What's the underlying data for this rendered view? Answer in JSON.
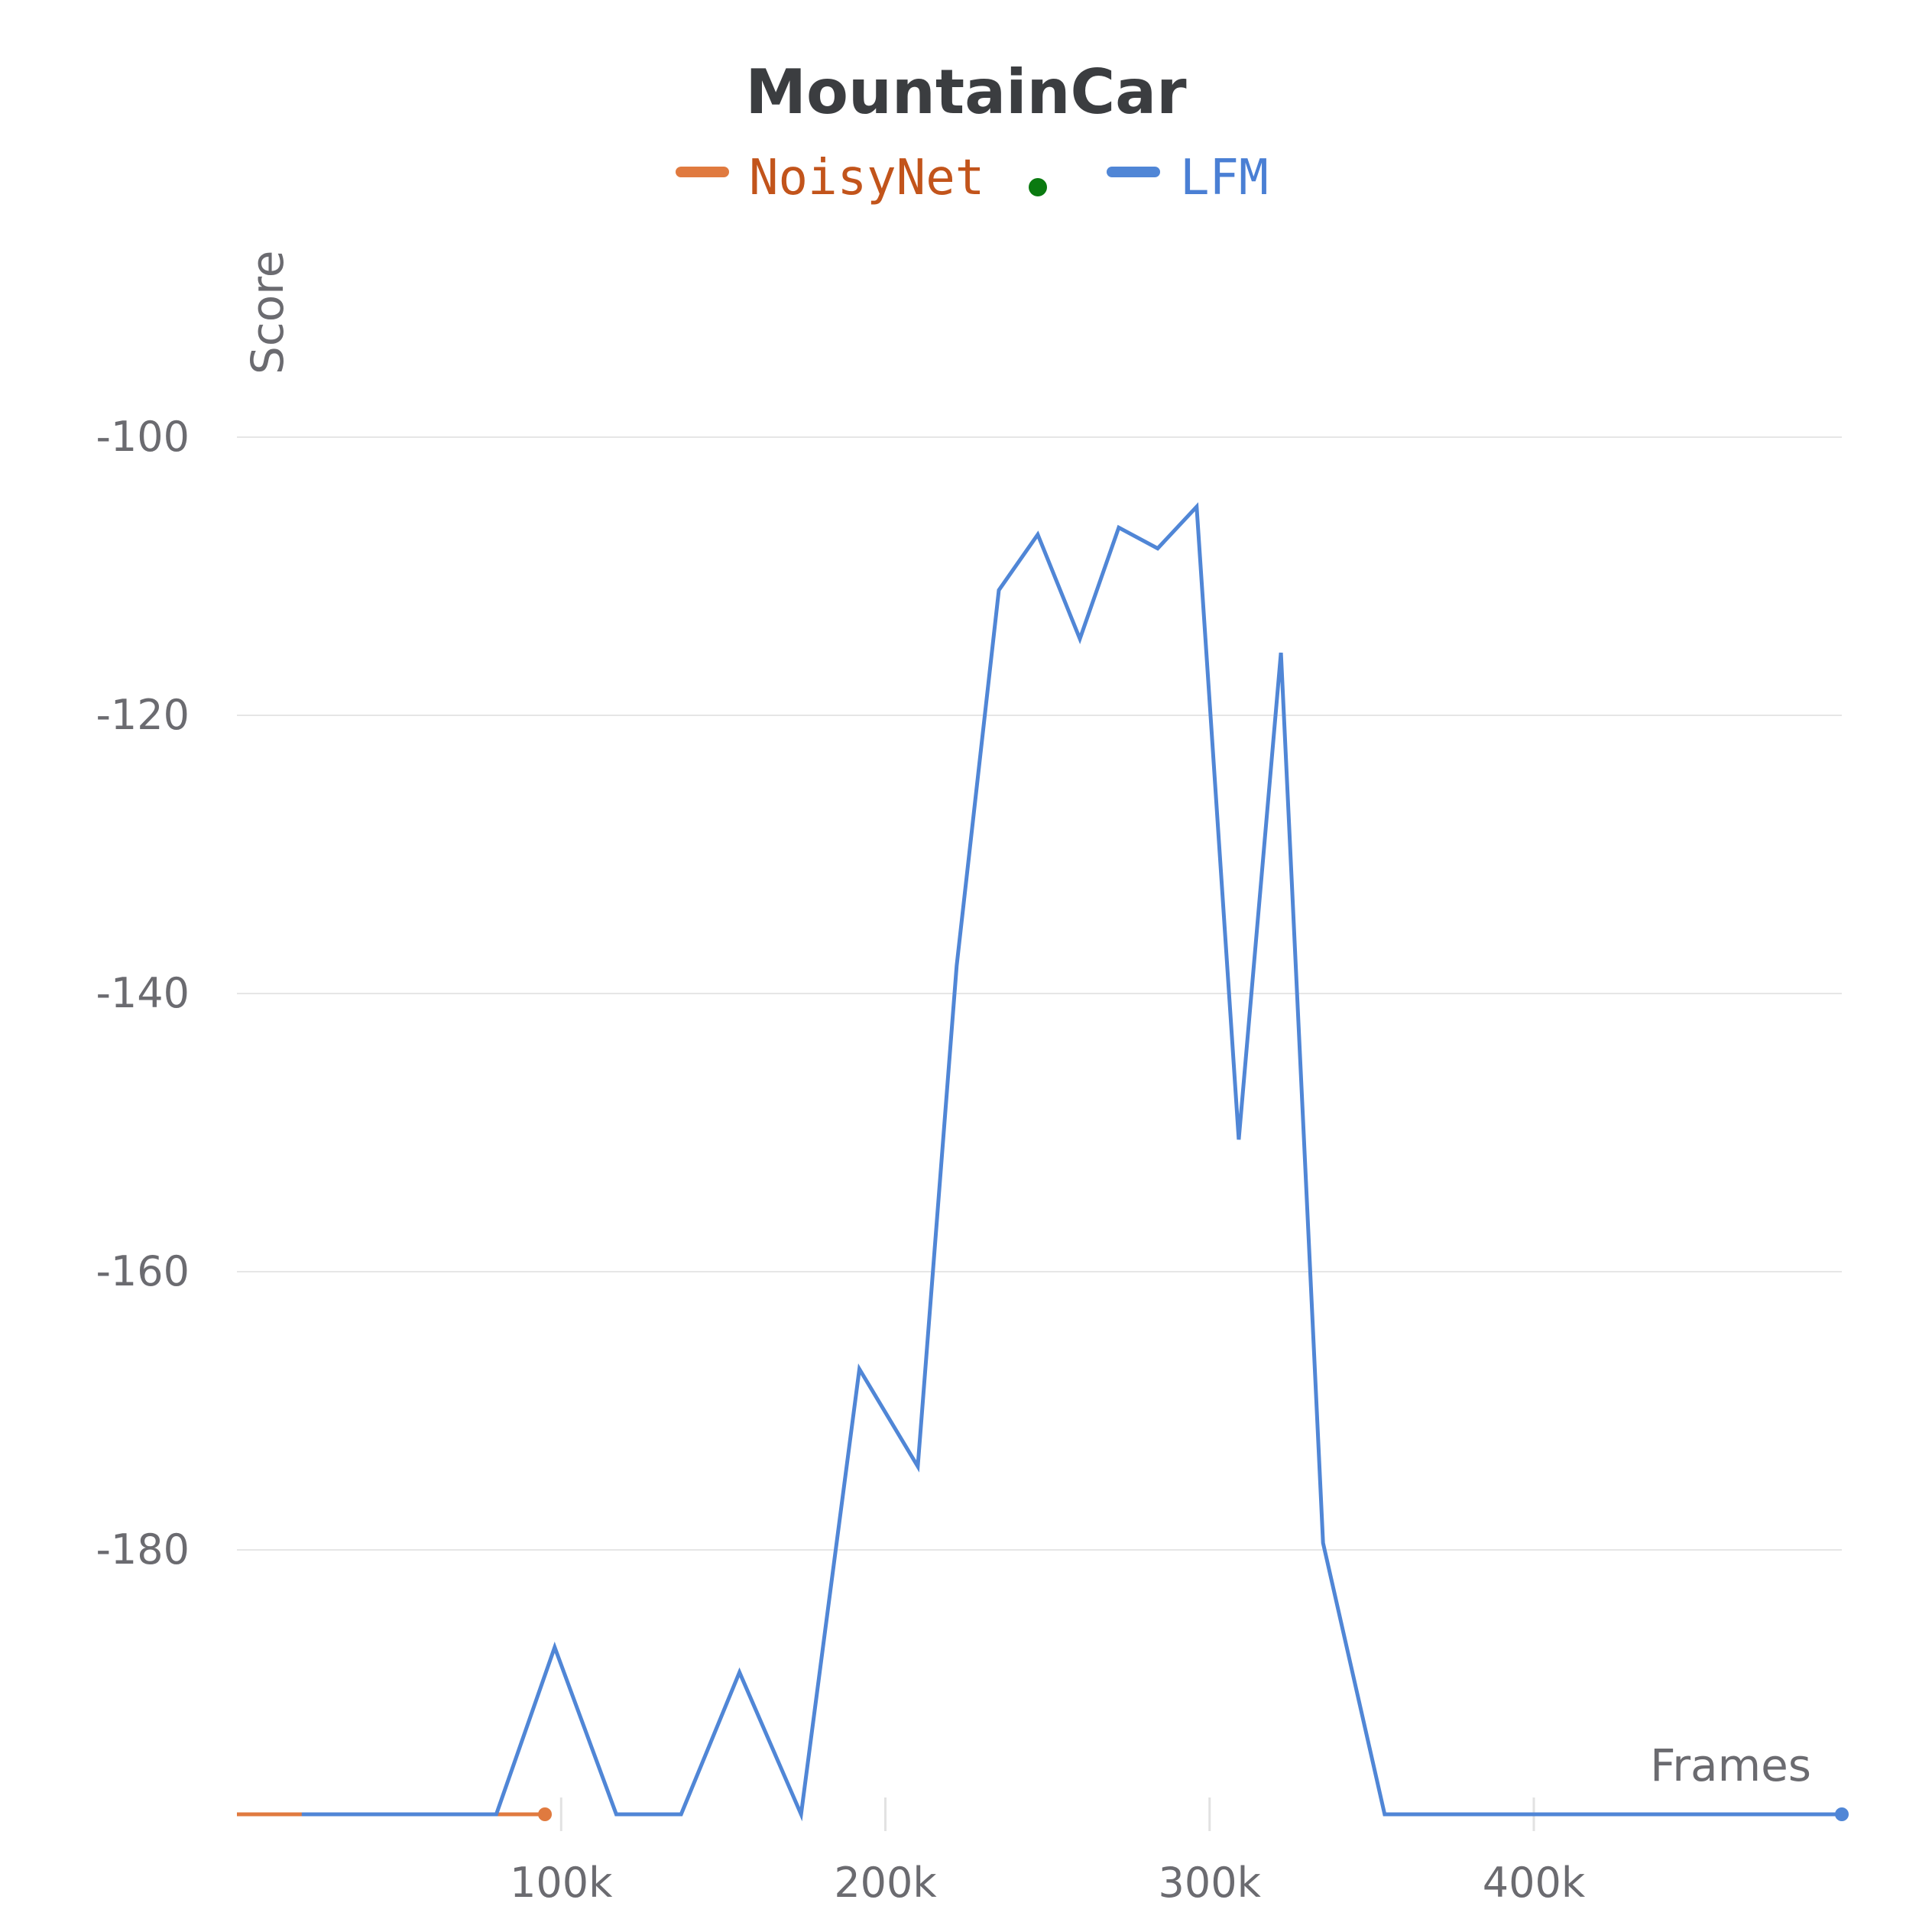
{
  "chart_data": {
    "type": "line",
    "title": "MountainCar",
    "xlabel": "Frames",
    "ylabel": "Score",
    "xlim": [
      0,
      495000
    ],
    "ylim": [
      -195,
      -92
    ],
    "x_ticks": [
      100000,
      200000,
      300000,
      400000
    ],
    "x_tick_labels": [
      "100k",
      "200k",
      "300k",
      "400k"
    ],
    "y_ticks": [
      -100,
      -120,
      -140,
      -160,
      -180
    ],
    "y_tick_labels": [
      "-100",
      "-120",
      "-140",
      "-160",
      "-180"
    ],
    "grid": true,
    "legend_position": "top",
    "legend": [
      {
        "name": "NoisyNet",
        "color": "#e07a3f",
        "text_color": "#c2541b"
      },
      {
        "name": "",
        "color": "#0a7a10",
        "marker_only": true
      },
      {
        "name": "LFM",
        "color": "#5086d6",
        "text_color": "#4a7fd4"
      }
    ],
    "series": [
      {
        "name": "NoisyNet",
        "color": "#e07a3f",
        "end_marker": true,
        "x": [
          0,
          95000
        ],
        "y": [
          -199,
          -199
        ]
      },
      {
        "name": "LFM",
        "color": "#5086d6",
        "end_marker": true,
        "x": [
          20000,
          80000,
          98000,
          117000,
          137000,
          155000,
          174000,
          192000,
          210000,
          222000,
          235000,
          247000,
          260000,
          272000,
          284000,
          296000,
          309000,
          322000,
          335000,
          354000,
          495000
        ],
        "y": [
          -199,
          -199,
          -187,
          -197.3,
          -197.2,
          -188.8,
          -199,
          -167,
          -174,
          -138,
          -111,
          -107,
          -114.5,
          -106.5,
          -108,
          -105,
          -150.5,
          -115.5,
          -179.5,
          -199,
          -199
        ]
      }
    ]
  }
}
